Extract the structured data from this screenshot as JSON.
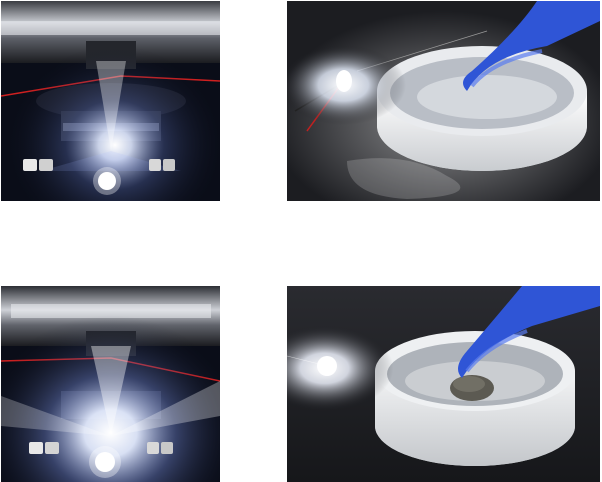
{
  "photos": [
    {
      "id": "top-left",
      "subject": "press-fixture-with-led",
      "lit": true
    },
    {
      "id": "top-right",
      "subject": "gloved-finger-in-cold-dish-with-led",
      "lit": true
    },
    {
      "id": "bottom-left",
      "subject": "press-fixture-with-led",
      "lit": true
    },
    {
      "id": "bottom-right",
      "subject": "gloved-finger-on-sample-in-dish-with-led",
      "lit": true
    }
  ],
  "colors": {
    "glove": "#2f55d6",
    "dark_bg": "#0a0d18",
    "led_glow": "#ffffff",
    "lab_bench": "#1c1d21"
  }
}
